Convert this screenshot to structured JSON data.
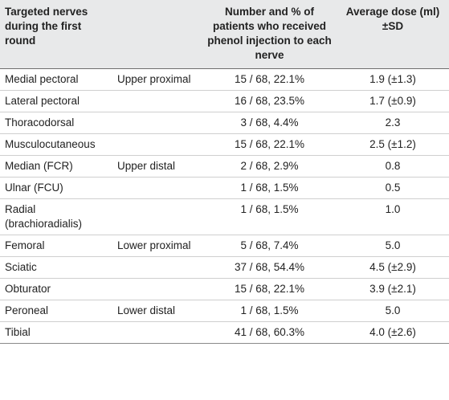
{
  "table": {
    "headers": {
      "nerves": "Targeted nerves during the first round",
      "region": "",
      "number": "Number and % of patients who received phenol injection to each nerve",
      "dose": "Average dose (ml) ±SD"
    },
    "rows": [
      {
        "nerve": "Medial pectoral",
        "region": "Upper proximal",
        "count": "15 / 68, 22.1%",
        "dose": "1.9 (±1.3)"
      },
      {
        "nerve": "Lateral pectoral",
        "region": "",
        "count": "16 / 68, 23.5%",
        "dose": "1.7 (±0.9)"
      },
      {
        "nerve": "Thoracodorsal",
        "region": "",
        "count": "3 / 68, 4.4%",
        "dose": "2.3"
      },
      {
        "nerve": "Musculocutaneous",
        "region": "",
        "count": "15 / 68, 22.1%",
        "dose": "2.5 (±1.2)"
      },
      {
        "nerve": "Median (FCR)",
        "region": "Upper distal",
        "count": "2 / 68, 2.9%",
        "dose": "0.8"
      },
      {
        "nerve": "Ulnar (FCU)",
        "region": "",
        "count": "1 / 68, 1.5%",
        "dose": "0.5"
      },
      {
        "nerve": "Radial (brachioradialis)",
        "region": "",
        "count": "1 / 68, 1.5%",
        "dose": "1.0"
      },
      {
        "nerve": "Femoral",
        "region": "Lower proximal",
        "count": "5 / 68, 7.4%",
        "dose": "5.0"
      },
      {
        "nerve": "Sciatic",
        "region": "",
        "count": "37 / 68, 54.4%",
        "dose": "4.5 (±2.9)"
      },
      {
        "nerve": "Obturator",
        "region": "",
        "count": "15 / 68, 22.1%",
        "dose": "3.9 (±2.1)"
      },
      {
        "nerve": "Peroneal",
        "region": "Lower distal",
        "count": "1 / 68, 1.5%",
        "dose": "5.0"
      },
      {
        "nerve": "Tibial",
        "region": "",
        "count": "41 / 68, 60.3%",
        "dose": "4.0 (±2.6)"
      }
    ]
  }
}
